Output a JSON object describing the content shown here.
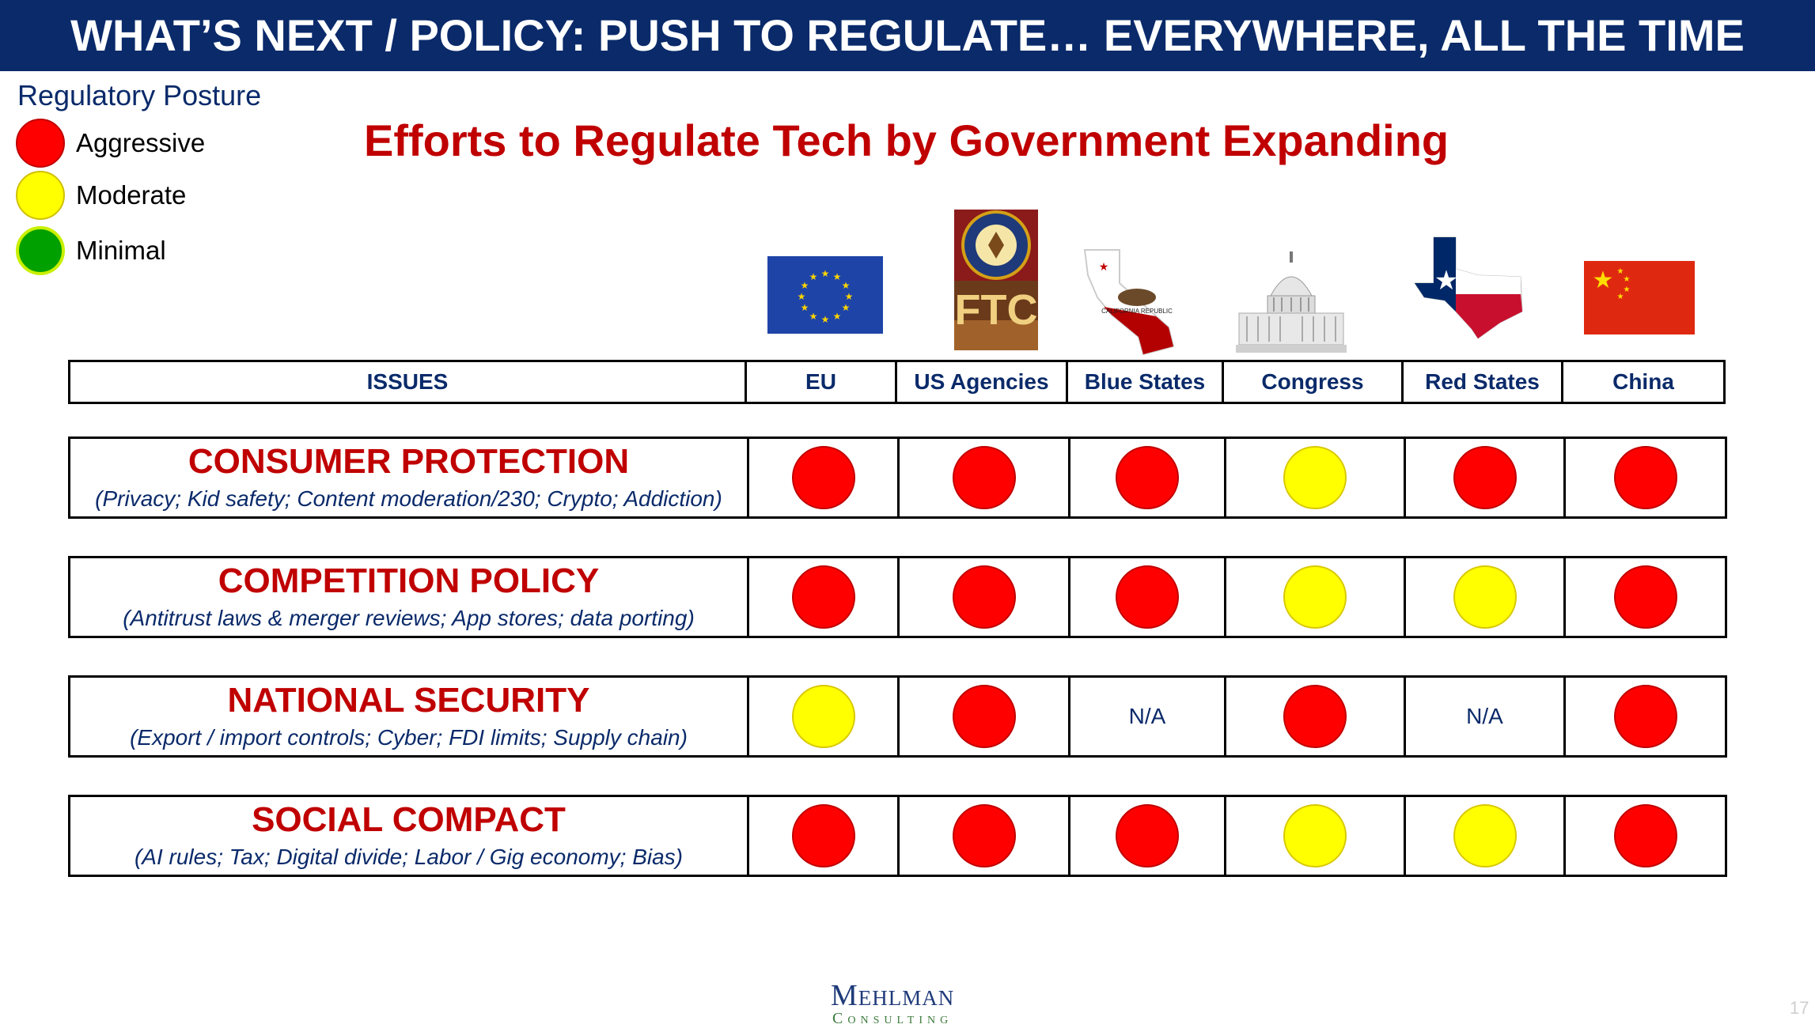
{
  "banner": {
    "title": "WHAT’S NEXT / POLICY: PUSH TO REGULATE… EVERYWHERE, ALL THE TIME"
  },
  "legend": {
    "title": "Regulatory Posture",
    "items": [
      {
        "label": "Aggressive",
        "color": "#ff0000"
      },
      {
        "label": "Moderate",
        "color": "#ffff00"
      },
      {
        "label": "Minimal",
        "color": "#00a000"
      }
    ]
  },
  "headline": "Efforts to Regulate Tech by Government Expanding",
  "icons": {
    "eu": "eu-flag",
    "us_agencies_1": "doj-seal",
    "us_agencies_2": "ftc-logo",
    "ftc_text": "FTC",
    "blue_states": "california-flag-map",
    "california_text": "CALIFORNIA REPUBLIC",
    "congress": "capitol-building",
    "red_states": "texas-flag-map",
    "china": "china-flag"
  },
  "table": {
    "headers": [
      "ISSUES",
      "EU",
      "US Agencies",
      "Blue States",
      "Congress",
      "Red States",
      "China"
    ],
    "rows": [
      {
        "title": "CONSUMER PROTECTION",
        "subtitle": "(Privacy; Kid safety; Content moderation/230; Crypto; Addiction)",
        "cells": [
          "aggressive",
          "aggressive",
          "aggressive",
          "moderate",
          "aggressive",
          "aggressive"
        ]
      },
      {
        "title": "COMPETITION POLICY",
        "subtitle": "(Antitrust laws & merger reviews; App stores; data porting)",
        "cells": [
          "aggressive",
          "aggressive",
          "aggressive",
          "moderate",
          "moderate",
          "aggressive"
        ]
      },
      {
        "title": "NATIONAL SECURITY",
        "subtitle": "(Export / import controls; Cyber; FDI limits; Supply chain)",
        "cells": [
          "moderate",
          "aggressive",
          "N/A",
          "aggressive",
          "N/A",
          "aggressive"
        ]
      },
      {
        "title": "SOCIAL COMPACT",
        "subtitle": "(AI rules; Tax; Digital divide; Labor / Gig economy; Bias)",
        "cells": [
          "aggressive",
          "aggressive",
          "aggressive",
          "moderate",
          "moderate",
          "aggressive"
        ]
      }
    ]
  },
  "colors": {
    "aggressive": "#ff0000",
    "moderate": "#ffff00",
    "minimal": "#00a000",
    "navy": "#0a2a6a",
    "title_red": "#c00000"
  },
  "footer": {
    "brand_line1": "Mehlman",
    "brand_line2": "Consulting",
    "page_number": "17"
  }
}
